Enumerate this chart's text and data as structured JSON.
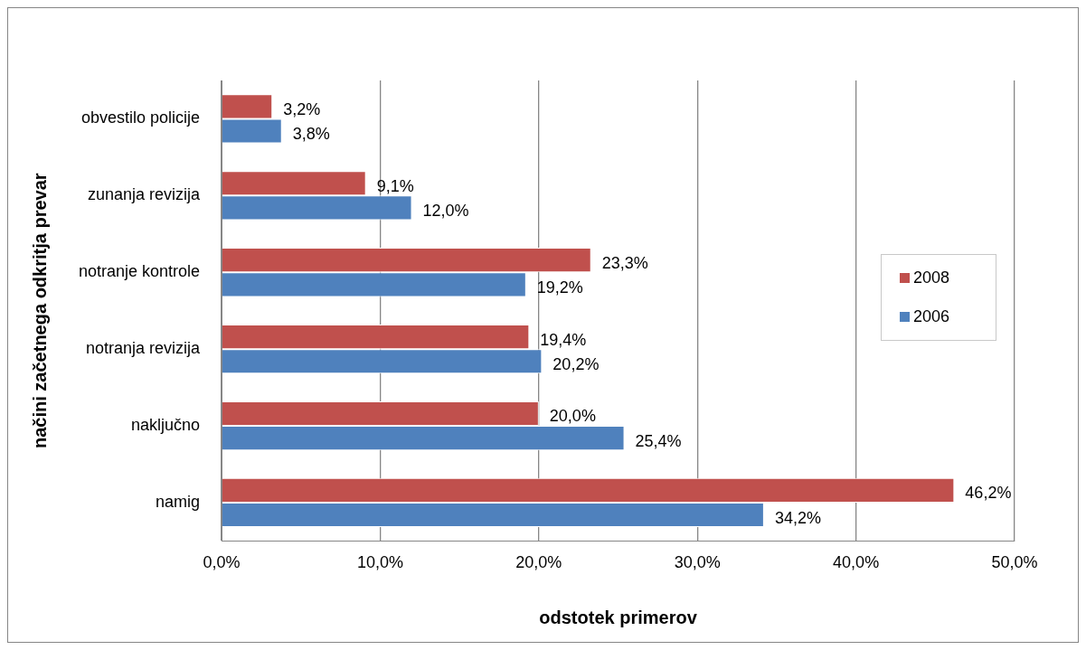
{
  "chart_data": {
    "type": "bar",
    "orientation": "horizontal",
    "categories": [
      "obvestilo policije",
      "zunanja revizija",
      "notranje kontrole",
      "notranja revizija",
      "naključno",
      "namig"
    ],
    "series": [
      {
        "name": "2008",
        "color": "#c0504d",
        "values": [
          3.2,
          9.1,
          23.3,
          19.4,
          20.0,
          46.2
        ],
        "value_labels": [
          "3,2%",
          "9,1%",
          "23,3%",
          "19,4%",
          "20,0%",
          "46,2%"
        ]
      },
      {
        "name": "2006",
        "color": "#4f81bd",
        "values": [
          3.8,
          12.0,
          19.2,
          20.2,
          25.4,
          34.2
        ],
        "value_labels": [
          "3,8%",
          "12,0%",
          "19,2%",
          "20,2%",
          "25,4%",
          "34,2%"
        ]
      }
    ],
    "xlim": [
      0,
      50
    ],
    "xticks": [
      {
        "value": 0,
        "label": "0,0%"
      },
      {
        "value": 10,
        "label": "10,0%"
      },
      {
        "value": 20,
        "label": "20,0%"
      },
      {
        "value": 30,
        "label": "30,0%"
      },
      {
        "value": 40,
        "label": "40,0%"
      },
      {
        "value": 50,
        "label": "50,0%"
      }
    ],
    "xlabel": "odstotek primerov",
    "ylabel": "načini začetnega odkritja prevar",
    "grid": "x",
    "legend": "right"
  }
}
